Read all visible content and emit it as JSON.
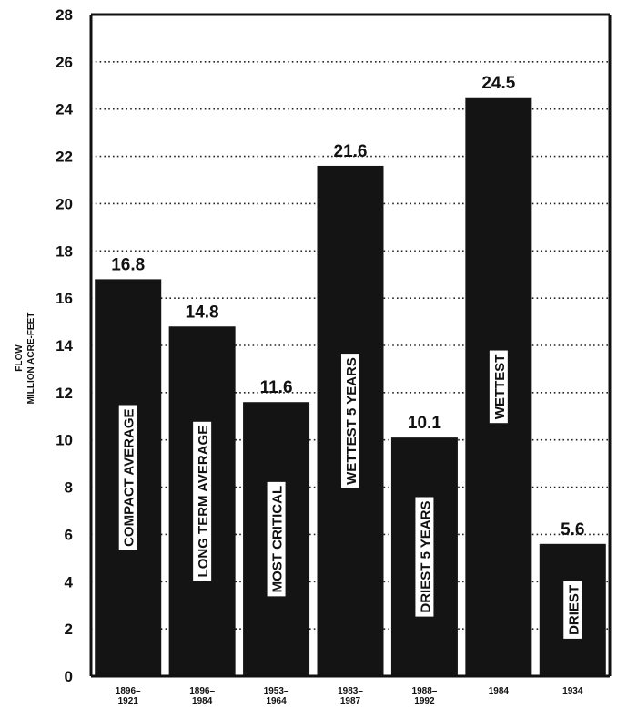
{
  "chart_data": {
    "type": "bar",
    "ylabel": [
      "FLOW",
      "MILLION ACRE-FEET"
    ],
    "ylim": [
      0,
      28
    ],
    "yticks": [
      0,
      2,
      4,
      6,
      8,
      10,
      12,
      14,
      16,
      18,
      20,
      22,
      24,
      26,
      28
    ],
    "grid": "horizontal-dotted",
    "categories": [
      {
        "x_label": [
          "1896–",
          "1921"
        ],
        "bar_label": "COMPACT AVERAGE",
        "value": 16.8,
        "value_label": "16.8"
      },
      {
        "x_label": [
          "1896–",
          "1984"
        ],
        "bar_label": "LONG TERM AVERAGE",
        "value": 14.8,
        "value_label": "14.8"
      },
      {
        "x_label": [
          "1953–",
          "1964"
        ],
        "bar_label": "MOST CRITICAL",
        "value": 11.6,
        "value_label": "11.6"
      },
      {
        "x_label": [
          "1983–",
          "1987"
        ],
        "bar_label": "WETTEST 5 YEARS",
        "value": 21.6,
        "value_label": "21.6"
      },
      {
        "x_label": [
          "1988–",
          "1992"
        ],
        "bar_label": "DRIEST 5 YEARS",
        "value": 10.1,
        "value_label": "10.1"
      },
      {
        "x_label": [
          "1984"
        ],
        "bar_label": "WETTEST",
        "value": 24.5,
        "value_label": "24.5"
      },
      {
        "x_label": [
          "1934"
        ],
        "bar_label": "DRIEST",
        "value": 5.6,
        "value_label": "5.6"
      }
    ],
    "colors": {
      "bar": "#141414",
      "label_box": "#ffffff",
      "text": "#111111"
    }
  }
}
